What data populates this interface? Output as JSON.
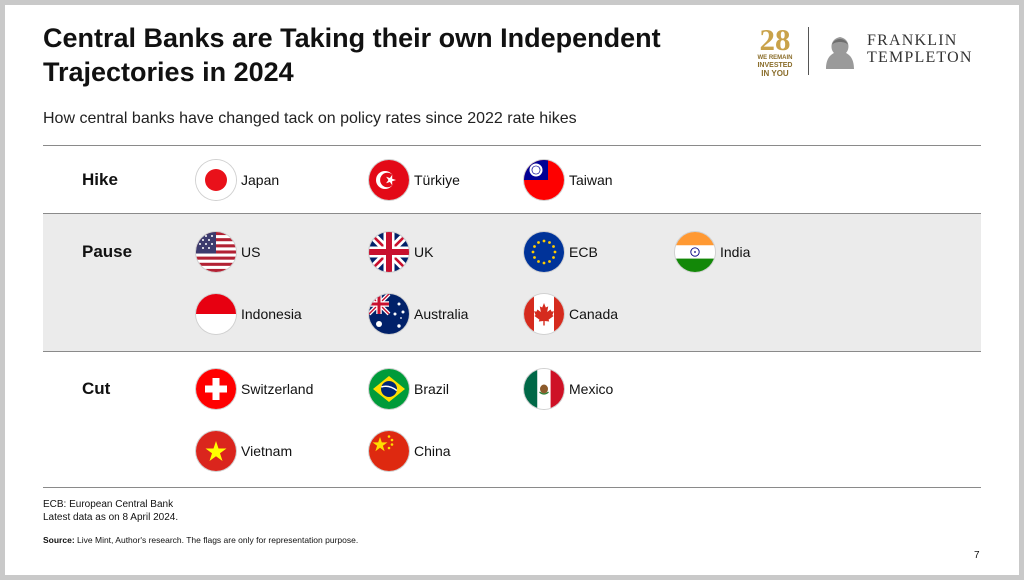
{
  "header": {
    "title": "Central Banks are Taking their own Independent Trajectories in 2024",
    "subtitle": "How central banks have changed tack on policy rates since 2022 rate hikes"
  },
  "logo": {
    "badge_number": "28",
    "badge_tagline": [
      "WE REMAIN",
      "INVESTED",
      "IN YOU"
    ],
    "brand_line1": "FRANKLIN",
    "brand_line2": "TEMPLETON"
  },
  "groups": {
    "hike": {
      "label": "Hike",
      "countries": [
        {
          "name": "Japan",
          "flag": "japan-flag"
        },
        {
          "name": "Türkiye",
          "flag": "turkiye-flag"
        },
        {
          "name": "Taiwan",
          "flag": "taiwan-flag"
        }
      ]
    },
    "pause": {
      "label": "Pause",
      "countries": [
        {
          "name": "US",
          "flag": "us-flag"
        },
        {
          "name": "UK",
          "flag": "uk-flag"
        },
        {
          "name": "ECB",
          "flag": "eu-flag"
        },
        {
          "name": "India",
          "flag": "india-flag"
        },
        {
          "name": "Indonesia",
          "flag": "indonesia-flag"
        },
        {
          "name": "Australia",
          "flag": "australia-flag"
        },
        {
          "name": "Canada",
          "flag": "canada-flag"
        }
      ]
    },
    "cut": {
      "label": "Cut",
      "countries": [
        {
          "name": "Switzerland",
          "flag": "switzerland-flag"
        },
        {
          "name": "Brazil",
          "flag": "brazil-flag"
        },
        {
          "name": "Mexico",
          "flag": "mexico-flag"
        },
        {
          "name": "Vietnam",
          "flag": "vietnam-flag"
        },
        {
          "name": "China",
          "flag": "china-flag"
        }
      ]
    }
  },
  "footer": {
    "note1": "ECB: European Central Bank",
    "note2": "Latest data as on 8 April 2024.",
    "source_label": "Source:",
    "source_text": "Live Mint, Author's research. The flags are only for representation purpose.",
    "page_number": "7"
  },
  "colors": {
    "band_background": "#ebebeb",
    "rule": "#8a8a8a",
    "logo_gold": "#c9a24a"
  }
}
